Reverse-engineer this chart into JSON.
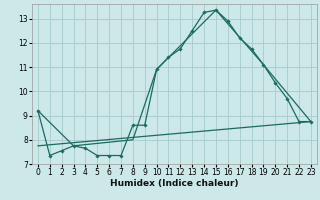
{
  "xlabel": "Humidex (Indice chaleur)",
  "bg_color": "#cce8e8",
  "grid_color": "#aacfcf",
  "line_color": "#1a6b60",
  "xlim": [
    -0.5,
    23.5
  ],
  "ylim": [
    7.0,
    13.6
  ],
  "yticks": [
    7,
    8,
    9,
    10,
    11,
    12,
    13
  ],
  "xticks": [
    0,
    1,
    2,
    3,
    4,
    5,
    6,
    7,
    8,
    9,
    10,
    11,
    12,
    13,
    14,
    15,
    16,
    17,
    18,
    19,
    20,
    21,
    22,
    23
  ],
  "line1_x": [
    0,
    1,
    2,
    3,
    4,
    5,
    6,
    7,
    8,
    9,
    10,
    11,
    12,
    13,
    14,
    15,
    16,
    17,
    18,
    19,
    20,
    21,
    22,
    23
  ],
  "line1_y": [
    9.2,
    7.35,
    7.55,
    7.75,
    7.65,
    7.35,
    7.35,
    7.35,
    8.6,
    8.6,
    10.9,
    11.4,
    11.75,
    12.5,
    13.25,
    13.35,
    12.9,
    12.2,
    11.75,
    11.1,
    10.35,
    9.7,
    8.75,
    8.75
  ],
  "line2_x": [
    0,
    3,
    8,
    10,
    15,
    19,
    23
  ],
  "line2_y": [
    9.2,
    7.75,
    8.0,
    10.9,
    13.35,
    11.1,
    8.75
  ],
  "line3_x": [
    0,
    23
  ],
  "line3_y": [
    7.75,
    8.75
  ],
  "xlabel_fontsize": 6.5,
  "tick_fontsize": 5.5
}
